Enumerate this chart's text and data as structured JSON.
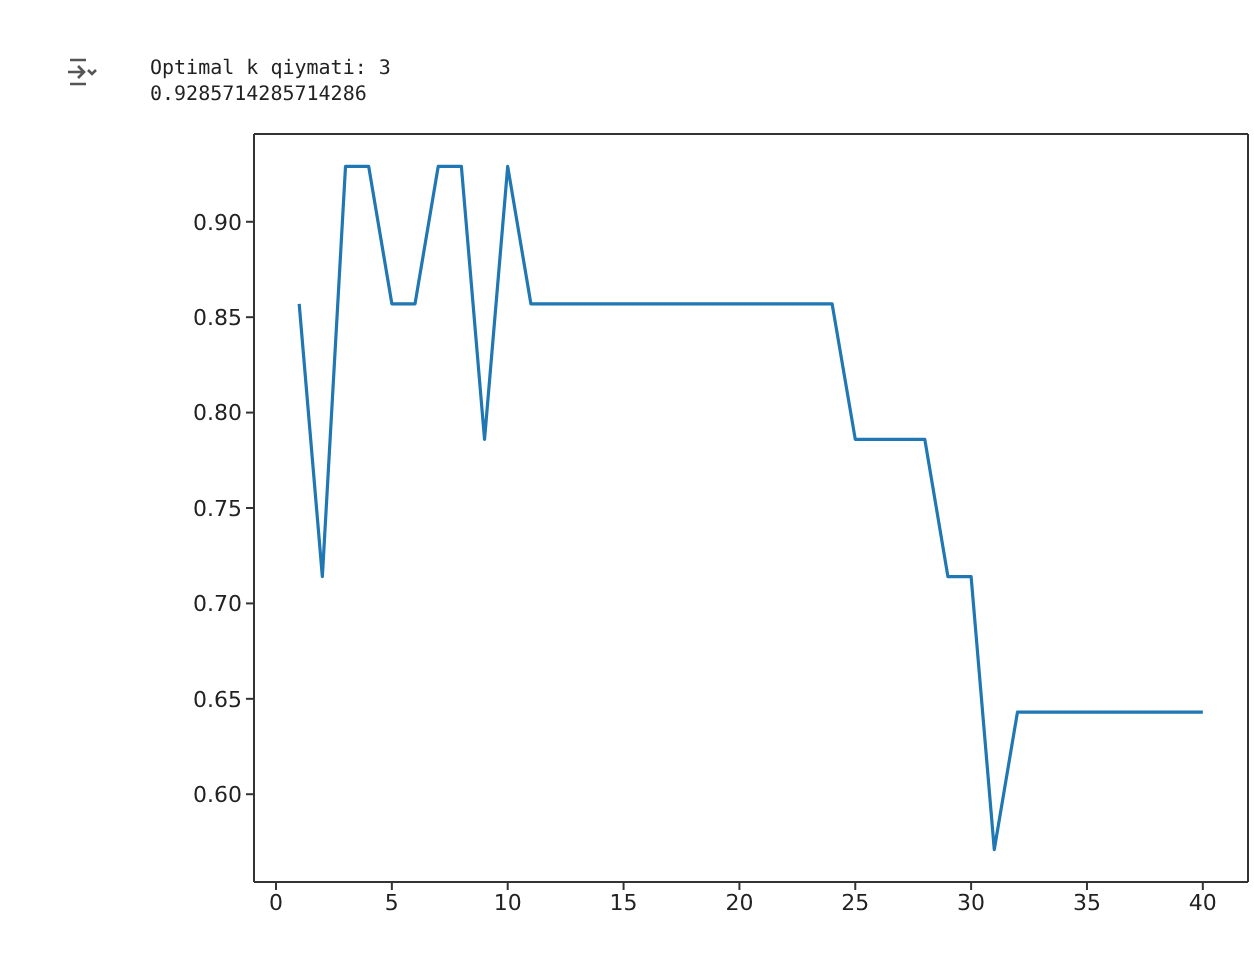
{
  "chart_data": {
    "type": "line",
    "annotations": [
      "Optimal k qiymati: 3",
      "0.9285714285714286"
    ],
    "x": [
      1,
      2,
      3,
      4,
      5,
      6,
      7,
      8,
      9,
      10,
      11,
      12,
      13,
      14,
      15,
      16,
      17,
      18,
      19,
      20,
      21,
      22,
      23,
      24,
      25,
      26,
      27,
      28,
      29,
      30,
      31,
      32,
      33,
      34,
      35,
      36,
      37,
      38,
      39,
      40
    ],
    "series": [
      {
        "color": "#1f77b4",
        "values": [
          0.857,
          0.714,
          0.929,
          0.929,
          0.857,
          0.857,
          0.929,
          0.929,
          0.786,
          0.929,
          0.857,
          0.857,
          0.857,
          0.857,
          0.857,
          0.857,
          0.857,
          0.857,
          0.857,
          0.857,
          0.857,
          0.857,
          0.857,
          0.857,
          0.786,
          0.786,
          0.786,
          0.786,
          0.714,
          0.714,
          0.571,
          0.643,
          0.643,
          0.643,
          0.643,
          0.643,
          0.643,
          0.643,
          0.643,
          0.643
        ]
      }
    ],
    "xlim": [
      -0.95,
      41.95
    ],
    "xticks": [
      0,
      5,
      10,
      15,
      20,
      25,
      30,
      35,
      40
    ],
    "ylim": [
      0.554,
      0.946
    ],
    "yticks": [
      {
        "value": 0.6,
        "label": "0.60"
      },
      0.65,
      {
        "value": 0.7,
        "label": "0.70"
      },
      0.75,
      {
        "value": 0.8,
        "label": "0.80"
      },
      0.85,
      {
        "value": 0.9,
        "label": "0.90"
      }
    ],
    "grid": false,
    "legend": false,
    "marker": "none",
    "line_style": "solid"
  }
}
